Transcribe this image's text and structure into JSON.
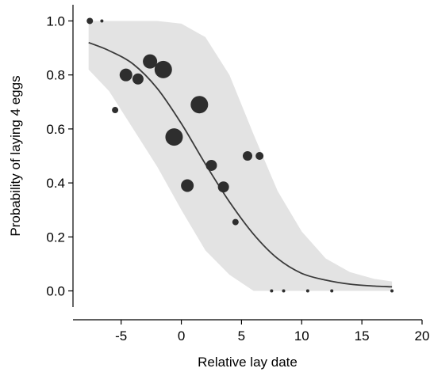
{
  "chart_data": {
    "type": "scatter",
    "xlabel": "Relative lay date",
    "ylabel": "Probability of laying 4 eggs",
    "xlim": [
      -9,
      20
    ],
    "ylim": [
      -0.06,
      1.06
    ],
    "xticks": [
      -5,
      0,
      5,
      10,
      15,
      20
    ],
    "yticks": [
      0.0,
      0.2,
      0.4,
      0.6,
      0.8,
      1.0
    ],
    "xtick_labels": [
      "-5",
      "0",
      "5",
      "10",
      "15",
      "20"
    ],
    "ytick_labels": [
      "0.0",
      "0.2",
      "0.4",
      "0.6",
      "0.8",
      "1.0"
    ],
    "grid": false,
    "legend": "none",
    "colors": {
      "points": "#2e2e2e",
      "line": "#3a3a3a",
      "band": "#e3e3e3"
    },
    "fit": {
      "x": [
        -7.7,
        -6,
        -4,
        -2,
        0,
        2,
        4,
        6,
        8,
        10,
        12,
        14,
        16,
        17.5
      ],
      "y": [
        0.92,
        0.89,
        0.84,
        0.75,
        0.62,
        0.47,
        0.33,
        0.21,
        0.12,
        0.065,
        0.04,
        0.025,
        0.018,
        0.015
      ]
    },
    "band": {
      "x": [
        -7.7,
        -6,
        -4,
        -2,
        0,
        2,
        4,
        6,
        8,
        10,
        12,
        14,
        16,
        17.5
      ],
      "upper": [
        1.0,
        1.0,
        1.0,
        1.0,
        0.99,
        0.94,
        0.8,
        0.58,
        0.37,
        0.22,
        0.12,
        0.07,
        0.045,
        0.035
      ],
      "lower": [
        0.82,
        0.74,
        0.6,
        0.46,
        0.3,
        0.15,
        0.06,
        0.0,
        0.0,
        0.0,
        0.0,
        0.0,
        0.0,
        0.0
      ]
    },
    "points": [
      {
        "x": -7.6,
        "y": 1.0,
        "size": 2
      },
      {
        "x": -6.6,
        "y": 1.0,
        "size": 1
      },
      {
        "x": -5.5,
        "y": 0.67,
        "size": 2
      },
      {
        "x": -4.6,
        "y": 0.8,
        "size": 4
      },
      {
        "x": -3.6,
        "y": 0.785,
        "size": 3.5
      },
      {
        "x": -2.6,
        "y": 0.85,
        "size": 4.5
      },
      {
        "x": -1.5,
        "y": 0.82,
        "size": 5.5
      },
      {
        "x": -0.6,
        "y": 0.57,
        "size": 5.5
      },
      {
        "x": 0.5,
        "y": 0.39,
        "size": 4
      },
      {
        "x": 1.5,
        "y": 0.69,
        "size": 5.5
      },
      {
        "x": 2.5,
        "y": 0.465,
        "size": 3.5
      },
      {
        "x": 3.5,
        "y": 0.385,
        "size": 3.5
      },
      {
        "x": 4.5,
        "y": 0.255,
        "size": 2
      },
      {
        "x": 5.5,
        "y": 0.5,
        "size": 3
      },
      {
        "x": 6.5,
        "y": 0.5,
        "size": 2.5
      },
      {
        "x": 7.5,
        "y": 0.0,
        "size": 1
      },
      {
        "x": 8.5,
        "y": 0.0,
        "size": 1
      },
      {
        "x": 10.5,
        "y": 0.0,
        "size": 1
      },
      {
        "x": 12.5,
        "y": 0.0,
        "size": 1
      },
      {
        "x": 17.5,
        "y": 0.0,
        "size": 1
      }
    ]
  }
}
